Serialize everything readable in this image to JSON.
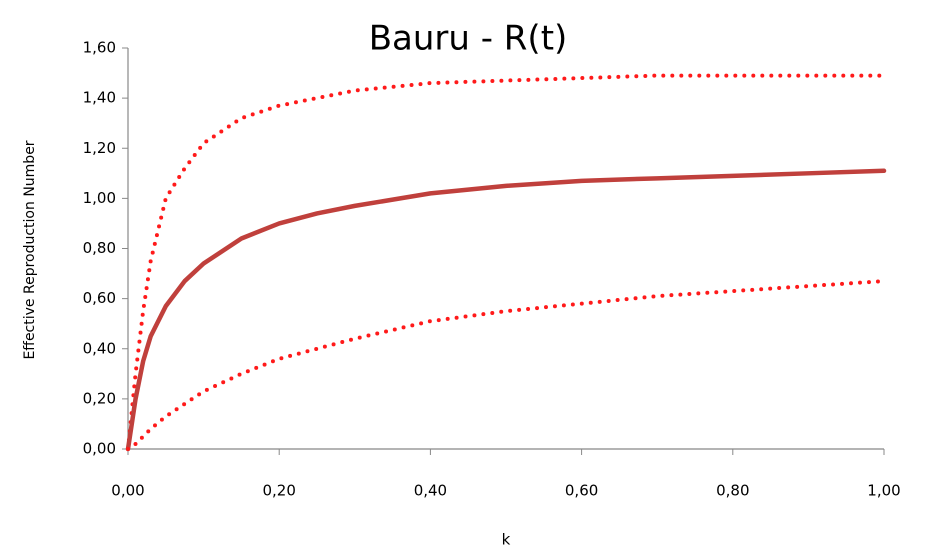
{
  "chart_data": {
    "type": "line",
    "title": "Bauru - R(t)",
    "x_label": "k",
    "y_label": "Effective Reproduction Number",
    "x": [
      0,
      0.01,
      0.02,
      0.03,
      0.05,
      0.075,
      0.1,
      0.15,
      0.2,
      0.25,
      0.3,
      0.4,
      0.5,
      0.6,
      0.7,
      0.8,
      0.9,
      1.0
    ],
    "series": [
      {
        "color": "#ff1a1a",
        "line_style": "dotted",
        "values": [
          0,
          0.3,
          0.55,
          0.75,
          1.0,
          1.12,
          1.22,
          1.32,
          1.37,
          1.4,
          1.43,
          1.46,
          1.47,
          1.48,
          1.49,
          1.49,
          1.49,
          1.49
        ]
      },
      {
        "color": "#c0403c",
        "line_style": "solid",
        "values": [
          0,
          0.2,
          0.35,
          0.45,
          0.57,
          0.67,
          0.74,
          0.84,
          0.9,
          0.94,
          0.97,
          1.02,
          1.05,
          1.07,
          1.08,
          1.09,
          1.1,
          1.11
        ]
      },
      {
        "color": "#ff1a1a",
        "line_style": "dotted",
        "values": [
          0,
          0.02,
          0.05,
          0.08,
          0.13,
          0.18,
          0.23,
          0.3,
          0.36,
          0.4,
          0.44,
          0.51,
          0.55,
          0.58,
          0.61,
          0.63,
          0.65,
          0.67
        ]
      }
    ],
    "xlim": [
      0,
      1
    ],
    "xticks": [
      {
        "value": 0,
        "label": "0,00"
      },
      {
        "value": 0.2,
        "label": "0,20"
      },
      {
        "value": 0.4,
        "label": "0,40"
      },
      {
        "value": 0.6,
        "label": "0,60"
      },
      {
        "value": 0.8,
        "label": "0,80"
      },
      {
        "value": 1,
        "label": "1,00"
      }
    ],
    "ylim": [
      0,
      1.6
    ],
    "yticks": [
      {
        "value": 0,
        "label": "0,00"
      },
      {
        "value": 0.2,
        "label": "0,20"
      },
      {
        "value": 0.4,
        "label": "0,40"
      },
      {
        "value": 0.6,
        "label": "0,60"
      },
      {
        "value": 0.8,
        "label": "0,80"
      },
      {
        "value": 1,
        "label": "1,00"
      },
      {
        "value": 1.2,
        "label": "1,20"
      },
      {
        "value": 1.4,
        "label": "1,40"
      },
      {
        "value": 1.6,
        "label": "1,60"
      }
    ],
    "grid": false
  }
}
